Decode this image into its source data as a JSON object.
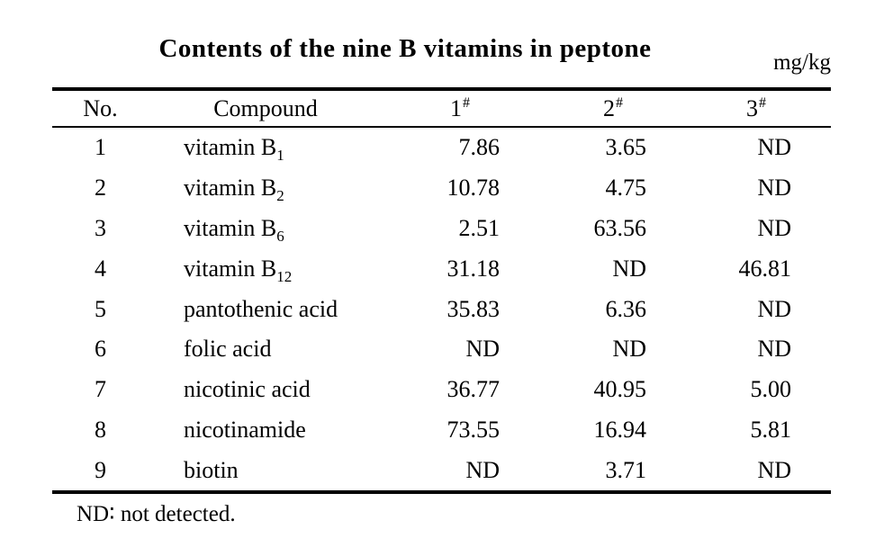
{
  "title": "Contents of the nine B vitamins in peptone",
  "unit": "mg/kg",
  "footnote": "ND∶ not detected.",
  "colors": {
    "text": "#000000",
    "background": "#ffffff",
    "rule": "#000000"
  },
  "table": {
    "headers": {
      "no": "No.",
      "compound": "Compound"
    },
    "sample_headers": [
      {
        "label": "1",
        "sup": "#"
      },
      {
        "label": "2",
        "sup": "#"
      },
      {
        "label": "3",
        "sup": "#"
      }
    ],
    "rows": [
      {
        "no": "1",
        "compound": "vitamin B",
        "compound_sub": "1",
        "values": [
          "7.86",
          "3.65",
          "ND"
        ]
      },
      {
        "no": "2",
        "compound": "vitamin B",
        "compound_sub": "2",
        "values": [
          "10.78",
          "4.75",
          "ND"
        ]
      },
      {
        "no": "3",
        "compound": "vitamin B",
        "compound_sub": "6",
        "values": [
          "2.51",
          "63.56",
          "ND"
        ]
      },
      {
        "no": "4",
        "compound": "vitamin B",
        "compound_sub": "12",
        "values": [
          "31.18",
          "ND",
          "46.81"
        ]
      },
      {
        "no": "5",
        "compound": "pantothenic acid",
        "compound_sub": "",
        "values": [
          "35.83",
          "6.36",
          "ND"
        ]
      },
      {
        "no": "6",
        "compound": "folic acid",
        "compound_sub": "",
        "values": [
          "ND",
          "ND",
          "ND"
        ]
      },
      {
        "no": "7",
        "compound": "nicotinic acid",
        "compound_sub": "",
        "values": [
          "36.77",
          "40.95",
          "5.00"
        ]
      },
      {
        "no": "8",
        "compound": "nicotinamide",
        "compound_sub": "",
        "values": [
          "73.55",
          "16.94",
          "5.81"
        ]
      },
      {
        "no": "9",
        "compound": "biotin",
        "compound_sub": "",
        "values": [
          "ND",
          "3.71",
          "ND"
        ]
      }
    ]
  }
}
